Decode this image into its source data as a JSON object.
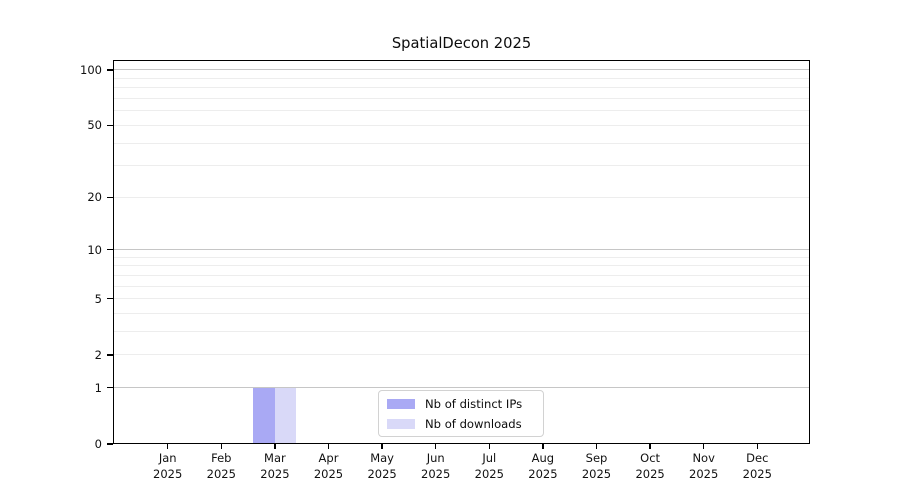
{
  "chart_data": {
    "type": "bar",
    "title": "SpatialDecon 2025",
    "categories": [
      "Jan 2025",
      "Feb 2025",
      "Mar 2025",
      "Apr 2025",
      "May 2025",
      "Jun 2025",
      "Jul 2025",
      "Aug 2025",
      "Sep 2025",
      "Oct 2025",
      "Nov 2025",
      "Dec 2025"
    ],
    "series": [
      {
        "name": "Nb of distinct IPs",
        "color": "#a9a9f4",
        "values": [
          0,
          0,
          1,
          0,
          0,
          0,
          0,
          0,
          0,
          0,
          0,
          0
        ]
      },
      {
        "name": "Nb of downloads",
        "color": "#d9d9f8",
        "values": [
          0,
          0,
          1,
          0,
          0,
          0,
          0,
          0,
          0,
          0,
          0,
          0
        ]
      }
    ],
    "yscale": "log1p",
    "ylim": [
      0,
      113
    ],
    "y_major_ticks": [
      100,
      50,
      20,
      10,
      5,
      2,
      1,
      0
    ],
    "y_minor_ticks": [
      3,
      4,
      6,
      7,
      8,
      9,
      30,
      40,
      60,
      70,
      80,
      90
    ],
    "grid": true,
    "legend_position": "lower-center",
    "colors": {
      "grid_decade": "#c6c6c6",
      "grid_minor": "#ededed",
      "axis": "#000000",
      "background": "#ffffff"
    }
  }
}
